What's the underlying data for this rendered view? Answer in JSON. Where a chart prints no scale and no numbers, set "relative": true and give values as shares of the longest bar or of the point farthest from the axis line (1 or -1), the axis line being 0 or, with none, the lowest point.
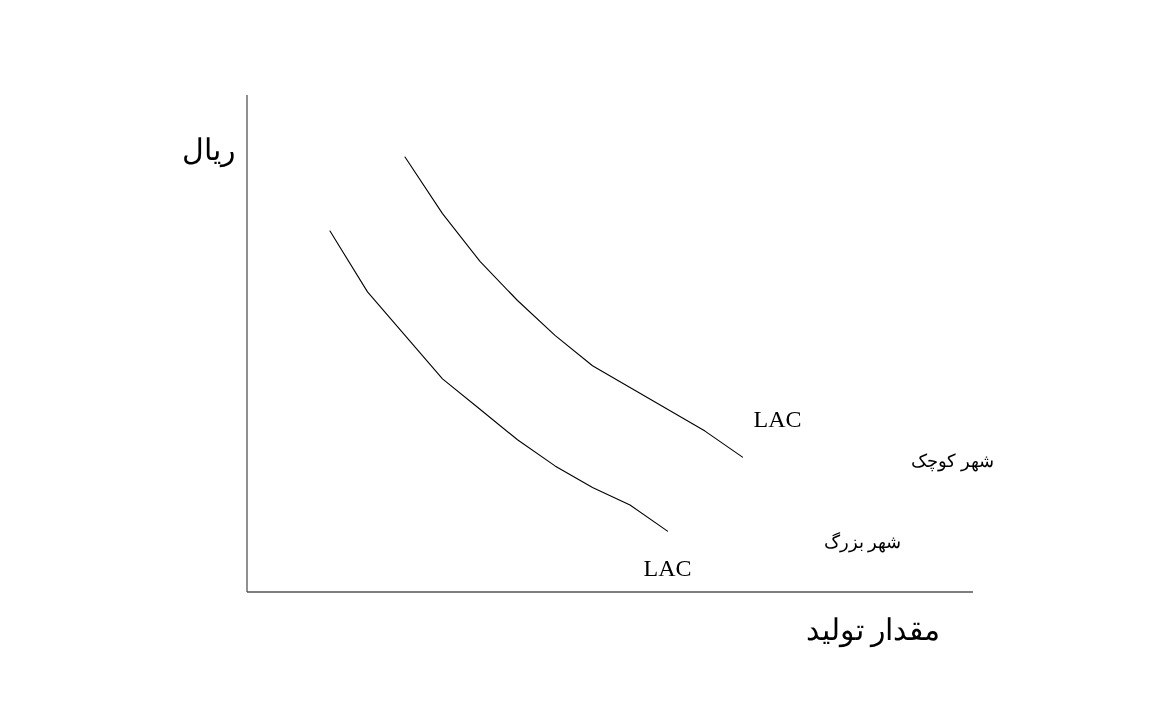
{
  "chart_data": {
    "type": "line",
    "relative": true,
    "xlabel": "مقدار تولید",
    "ylabel": "ریال",
    "categories": [
      null,
      null,
      null,
      null,
      null,
      null,
      null,
      null,
      null,
      null,
      null,
      null
    ],
    "series": [
      {
        "name": "LAC",
        "color": "#000000",
        "values": [
          null,
          null,
          1,
          0.87,
          0.76,
          0.67,
          0.59,
          0.52,
          0.47,
          0.42,
          0.37,
          0.31
        ]
      },
      {
        "name": "LAC",
        "color": "#000000",
        "values": [
          0.83,
          0.69,
          0.59,
          0.49,
          0.42,
          0.35,
          0.29,
          0.24,
          0.2,
          0.14,
          null,
          null
        ]
      }
    ],
    "annotations": [
      "شهر کوچک",
      "شهر بزرگ"
    ],
    "marker": "none",
    "line_style": "solid",
    "grid": false
  }
}
